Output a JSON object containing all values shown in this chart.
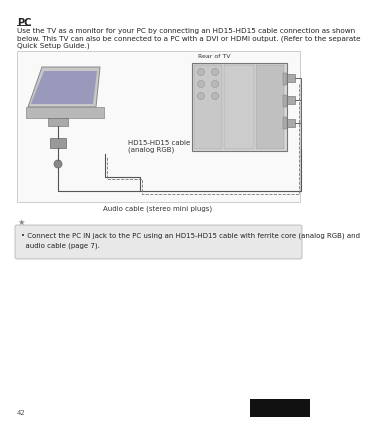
{
  "title": "PC",
  "body_text": "Use the TV as a monitor for your PC by connecting an HD15-HD15 cable connection as shown\nbelow. This TV can also be connected to a PC with a DVI or HDMI output. (Refer to the separate\nQuick Setup Guide.)",
  "rear_label": "Rear of TV",
  "cable_label1": "HD15-HD15 cable",
  "cable_label2": "(analog RGB)",
  "audio_label": "Audio cable (stereo mini plugs)",
  "note_text": "• Connect the PC IN jack to the PC using an HD15-HD15 cable with ferrite core (analog RGB) and\n  audio cable (page 7).",
  "page_number": "42",
  "bg_color": "#ffffff",
  "text_color": "#222222",
  "note_bg": "#e5e5e5",
  "note_border": "#aaaaaa",
  "title_fontsize": 7,
  "body_fontsize": 5.2,
  "note_fontsize": 5.0,
  "label_fontsize": 5.0,
  "small_fontsize": 4.5
}
